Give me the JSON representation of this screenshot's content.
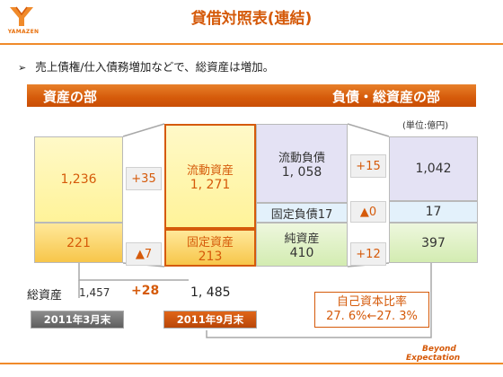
{
  "header": {
    "title": "貸借対照表(連結)",
    "logo_text": "YAMAZEN"
  },
  "summary": {
    "bullet": "売上債権/仕入債務増加などで、総資産は増加。"
  },
  "banner": {
    "left": "資産の部",
    "right": "負債・総資産の部"
  },
  "unit": "(単位:億円)",
  "assets_mar": {
    "current": "1,236",
    "fixed": "221"
  },
  "assets_changes": {
    "current": "+35",
    "fixed": "▲7"
  },
  "assets_sep": {
    "current_label": "流動資産",
    "current_value": "1, 271",
    "fixed_label": "固定資産",
    "fixed_value": "213"
  },
  "liab_sep": {
    "current_label": "流動負債",
    "current_value": "1, 058",
    "fixed_label": "固定負債17",
    "net_label": "純資産",
    "net_value": "410"
  },
  "liab_changes": {
    "current": "+15",
    "fixed": "▲0",
    "net": "+12"
  },
  "liab_mar": {
    "current": "1,042",
    "fixed": "17",
    "net": "397"
  },
  "total": {
    "label": "総資産",
    "mar_value": "1,457",
    "change": "+28",
    "sep_value": "1, 485"
  },
  "periods": {
    "mar": "2011年3月末",
    "sep": "2011年9月末"
  },
  "equity_ratio": {
    "label": "自己資本比率",
    "value": "27. 6%←27. 3%"
  },
  "tagline": {
    "line1": "Beyond",
    "line2": "Expectation"
  },
  "colors": {
    "accent": "#d55a0a",
    "banner": "#e8802a"
  }
}
